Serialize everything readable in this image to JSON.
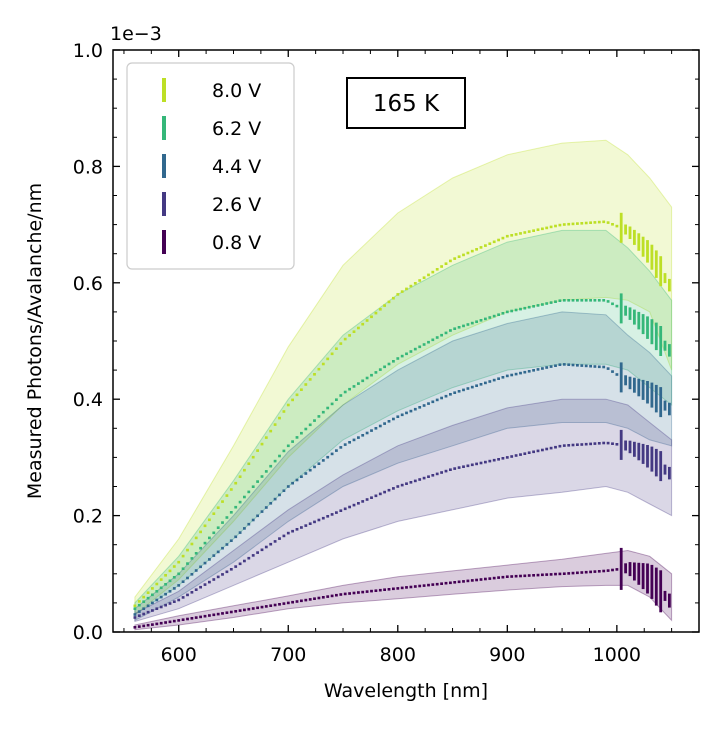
{
  "chart_data": {
    "type": "scatter",
    "title": "",
    "xlabel": "Wavelength [nm]",
    "ylabel": "Measured Photons/Avalanche/nm",
    "y_multiplier": "1e−3",
    "xlim": [
      540,
      1075
    ],
    "ylim": [
      0.0,
      1.0
    ],
    "x_ticks": [
      "600",
      "700",
      "800",
      "900",
      "1000"
    ],
    "x_tick_values": [
      600,
      700,
      800,
      900,
      1000
    ],
    "y_ticks": [
      "0.0",
      "0.2",
      "0.4",
      "0.6",
      "0.8",
      "1.0"
    ],
    "y_tick_values": [
      0.0,
      0.2,
      0.4,
      0.6,
      0.8,
      1.0
    ],
    "legend_position": "top-left",
    "annotation": "165 K",
    "grid": false,
    "series": [
      {
        "name": "8.0 V",
        "color": "#bddf26",
        "x": [
          560,
          600,
          650,
          700,
          750,
          800,
          850,
          900,
          950,
          990,
          1010,
          1030,
          1050
        ],
        "y": [
          0.045,
          0.12,
          0.25,
          0.39,
          0.5,
          0.58,
          0.64,
          0.68,
          0.7,
          0.705,
          0.69,
          0.65,
          0.59
        ],
        "band_upper": [
          0.06,
          0.16,
          0.32,
          0.49,
          0.63,
          0.72,
          0.78,
          0.82,
          0.84,
          0.845,
          0.82,
          0.78,
          0.73
        ],
        "band_lower": [
          0.03,
          0.09,
          0.19,
          0.3,
          0.39,
          0.46,
          0.51,
          0.55,
          0.57,
          0.575,
          0.57,
          0.55,
          0.45
        ]
      },
      {
        "name": "6.2 V",
        "color": "#35b779",
        "x": [
          560,
          600,
          650,
          700,
          750,
          800,
          850,
          900,
          950,
          990,
          1010,
          1030,
          1050
        ],
        "y": [
          0.04,
          0.1,
          0.21,
          0.32,
          0.41,
          0.47,
          0.52,
          0.55,
          0.57,
          0.57,
          0.55,
          0.52,
          0.48
        ],
        "band_upper": [
          0.05,
          0.13,
          0.26,
          0.4,
          0.51,
          0.58,
          0.63,
          0.67,
          0.69,
          0.69,
          0.66,
          0.62,
          0.57
        ],
        "band_lower": [
          0.03,
          0.08,
          0.16,
          0.25,
          0.33,
          0.38,
          0.42,
          0.45,
          0.46,
          0.46,
          0.45,
          0.42,
          0.39
        ]
      },
      {
        "name": "4.4 V",
        "color": "#31688e",
        "x": [
          560,
          600,
          650,
          700,
          750,
          800,
          850,
          900,
          950,
          990,
          1010,
          1030,
          1050
        ],
        "y": [
          0.03,
          0.08,
          0.16,
          0.25,
          0.32,
          0.37,
          0.41,
          0.44,
          0.46,
          0.455,
          0.43,
          0.41,
          0.38
        ],
        "band_upper": [
          0.04,
          0.1,
          0.2,
          0.31,
          0.39,
          0.45,
          0.5,
          0.53,
          0.55,
          0.545,
          0.51,
          0.48,
          0.44
        ],
        "band_lower": [
          0.02,
          0.06,
          0.12,
          0.19,
          0.25,
          0.29,
          0.32,
          0.35,
          0.36,
          0.36,
          0.35,
          0.33,
          0.32
        ]
      },
      {
        "name": "2.6 V",
        "color": "#443983",
        "x": [
          560,
          600,
          650,
          700,
          750,
          800,
          850,
          900,
          950,
          990,
          1010,
          1030,
          1050
        ],
        "y": [
          0.025,
          0.055,
          0.11,
          0.17,
          0.21,
          0.25,
          0.28,
          0.3,
          0.32,
          0.325,
          0.32,
          0.3,
          0.27
        ],
        "band_upper": [
          0.032,
          0.07,
          0.14,
          0.21,
          0.27,
          0.32,
          0.355,
          0.385,
          0.4,
          0.4,
          0.39,
          0.36,
          0.33
        ],
        "band_lower": [
          0.018,
          0.04,
          0.08,
          0.12,
          0.16,
          0.19,
          0.21,
          0.23,
          0.24,
          0.25,
          0.24,
          0.22,
          0.2
        ]
      },
      {
        "name": "0.8 V",
        "color": "#440154",
        "x": [
          560,
          600,
          650,
          700,
          750,
          800,
          850,
          900,
          950,
          990,
          1010,
          1030,
          1050
        ],
        "y": [
          0.008,
          0.02,
          0.035,
          0.05,
          0.065,
          0.075,
          0.085,
          0.095,
          0.1,
          0.105,
          0.11,
          0.09,
          0.05
        ],
        "band_upper": [
          0.012,
          0.028,
          0.045,
          0.062,
          0.08,
          0.095,
          0.105,
          0.115,
          0.125,
          0.135,
          0.14,
          0.13,
          0.1
        ],
        "band_lower": [
          0.004,
          0.012,
          0.025,
          0.04,
          0.05,
          0.057,
          0.065,
          0.072,
          0.078,
          0.08,
          0.08,
          0.06,
          0.02
        ]
      }
    ]
  }
}
